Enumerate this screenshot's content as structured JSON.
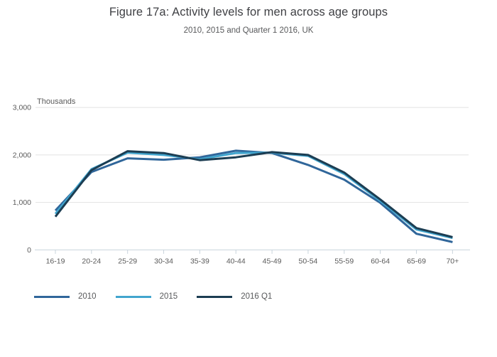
{
  "header": {
    "title": "Figure 17a: Activity levels for men across age groups",
    "subtitle": "2010, 2015 and Quarter 1 2016, UK"
  },
  "chart_data": {
    "type": "line",
    "unit_label": "Thousands",
    "categories": [
      "16-19",
      "20-24",
      "25-29",
      "30-34",
      "35-39",
      "40-44",
      "45-49",
      "50-54",
      "55-59",
      "60-64",
      "65-69",
      "70+"
    ],
    "series": [
      {
        "name": "2010",
        "color": "#30669a",
        "values": [
          830,
          1640,
          1930,
          1900,
          1950,
          2090,
          2040,
          1790,
          1480,
          990,
          340,
          165
        ]
      },
      {
        "name": "2015",
        "color": "#41a5ce",
        "values": [
          760,
          1700,
          2050,
          2000,
          1910,
          2040,
          2050,
          1980,
          1600,
          1030,
          430,
          250
        ]
      },
      {
        "name": "2016 Q1",
        "color": "#1c3d52",
        "values": [
          700,
          1680,
          2080,
          2040,
          1890,
          1950,
          2060,
          2000,
          1630,
          1060,
          460,
          270
        ]
      }
    ],
    "y_axis": {
      "min": 0,
      "max": 3000,
      "ticks": [
        {
          "value": 0,
          "label": "0"
        },
        {
          "value": 1000,
          "label": "1,000"
        },
        {
          "value": 2000,
          "label": "2,000"
        },
        {
          "value": 3000,
          "label": "3,000"
        }
      ]
    },
    "grid": true,
    "legend_position": "bottom-left"
  },
  "style_colors": {
    "gridline": "#e2e2e2",
    "axis_line": "#c9d4dc",
    "tick_label": "#5a5a5a",
    "title_text": "#3f4044",
    "subtitle_text": "#58595b"
  }
}
